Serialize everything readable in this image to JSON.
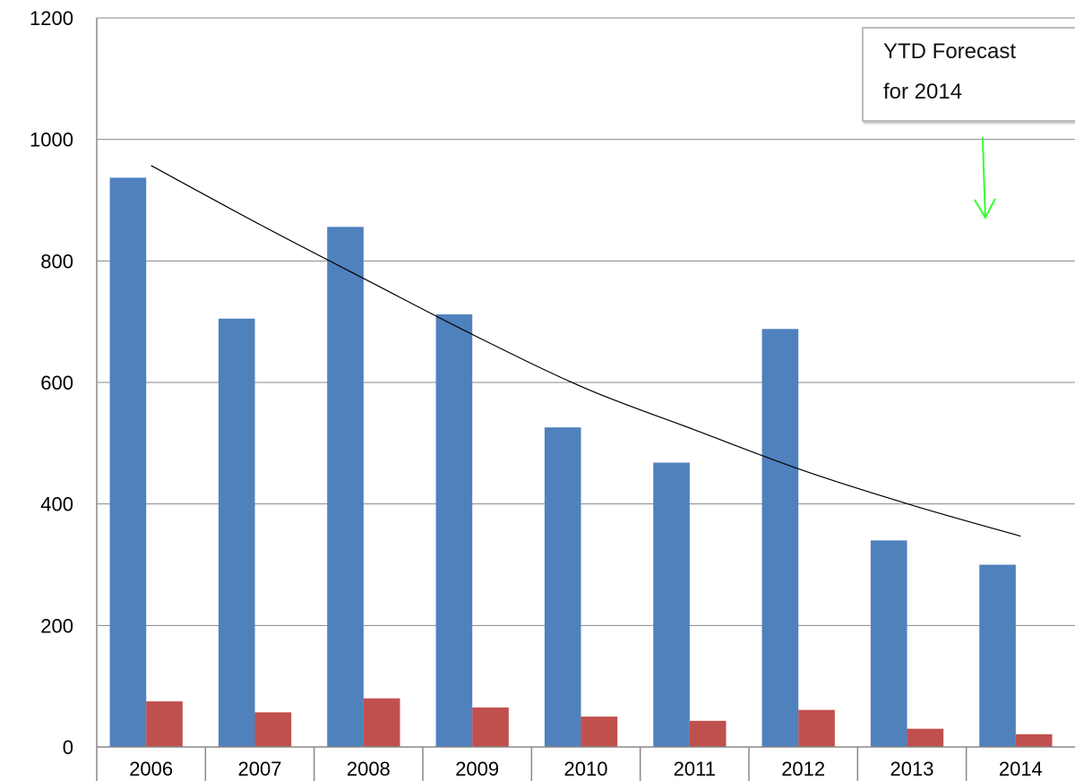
{
  "chart_data": {
    "type": "bar",
    "categories": [
      "2006",
      "2007",
      "2008",
      "2009",
      "2010",
      "2011",
      "2012",
      "2013",
      "2014"
    ],
    "series": [
      {
        "values": [
          937,
          705,
          856,
          712,
          526,
          468,
          688,
          340,
          300
        ]
      },
      {
        "values": [
          75,
          57,
          80,
          65,
          50,
          43,
          61,
          30,
          21
        ]
      }
    ],
    "trendline": {
      "type": "exponential",
      "series_index": 0,
      "values": [
        957,
        860,
        767,
        675,
        590,
        522,
        455,
        398,
        347
      ]
    },
    "yticks": [
      0,
      200,
      400,
      600,
      800,
      1000,
      1200
    ],
    "ylim": [
      0,
      1200
    ],
    "grid": true,
    "title": "",
    "xlabel": "",
    "ylabel": "",
    "annotation": {
      "lines": [
        "YTD Forecast",
        "for 2014"
      ],
      "arrow_target_category": "2014"
    },
    "colors": {
      "series_1": "#4f81bd",
      "series_2": "#c0504d",
      "trendline": "#000000",
      "arrow": "#33ff33",
      "gridline": "#888888"
    }
  }
}
